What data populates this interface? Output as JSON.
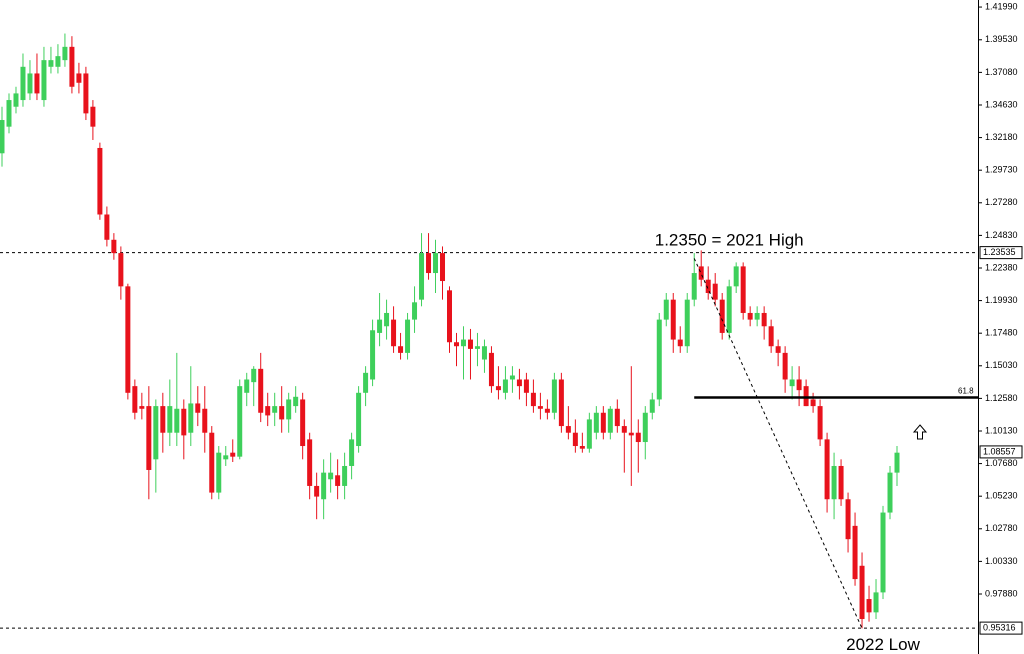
{
  "chart_data": {
    "type": "candlestick",
    "up_color": "#3ecf5b",
    "down_color": "#e8121c",
    "ylim": [
      0.9337,
      1.4252
    ],
    "yticks": [
      {
        "value": 1.4199,
        "label": "1.41990"
      },
      {
        "value": 1.3953,
        "label": "1.39530"
      },
      {
        "value": 1.3708,
        "label": "1.37080"
      },
      {
        "value": 1.3463,
        "label": "1.34630"
      },
      {
        "value": 1.3218,
        "label": "1.32180"
      },
      {
        "value": 1.2973,
        "label": "1.29730"
      },
      {
        "value": 1.2728,
        "label": "1.27280"
      },
      {
        "value": 1.2483,
        "label": "1.24830"
      },
      {
        "value": 1.2238,
        "label": "1.22380"
      },
      {
        "value": 1.1993,
        "label": "1.19930"
      },
      {
        "value": 1.1748,
        "label": "1.17480"
      },
      {
        "value": 1.1503,
        "label": "1.15030"
      },
      {
        "value": 1.1258,
        "label": "1.12580"
      },
      {
        "value": 1.1013,
        "label": "1.10130"
      },
      {
        "value": 1.0768,
        "label": "1.07680"
      },
      {
        "value": 1.0523,
        "label": "1.05230"
      },
      {
        "value": 1.0278,
        "label": "1.02780"
      },
      {
        "value": 1.0033,
        "label": "1.00330"
      },
      {
        "value": 0.9788,
        "label": "0.97880"
      }
    ],
    "price_labels": [
      {
        "value": 1.23535,
        "label": "1.23535",
        "dashed": true
      },
      {
        "value": 1.08557,
        "label": "1.08557",
        "dashed": false
      },
      {
        "value": 0.95316,
        "label": "0.95316",
        "dashed": true
      }
    ],
    "fib": {
      "ratio": 61.8,
      "price": 1.1265,
      "start": 99
    },
    "trendline": {
      "x": [
        99,
        123
      ],
      "y": [
        1.231,
        0.953
      ]
    },
    "annotations": [
      {
        "text": "1.2350 = 2021 High",
        "x": 104,
        "price": 1.244
      },
      {
        "text": "2022 Low",
        "x": 126,
        "price": 0.94
      }
    ],
    "ohlc": [
      [
        1.31,
        1.345,
        1.3,
        1.335
      ],
      [
        1.33,
        1.355,
        1.325,
        1.35
      ],
      [
        1.345,
        1.36,
        1.34,
        1.355
      ],
      [
        1.35,
        1.385,
        1.345,
        1.375
      ],
      [
        1.355,
        1.38,
        1.35,
        1.37
      ],
      [
        1.37,
        1.385,
        1.35,
        1.355
      ],
      [
        1.35,
        1.39,
        1.345,
        1.38
      ],
      [
        1.375,
        1.39,
        1.37,
        1.38
      ],
      [
        1.375,
        1.392,
        1.37,
        1.383
      ],
      [
        1.38,
        1.4,
        1.375,
        1.39
      ],
      [
        1.39,
        1.398,
        1.355,
        1.36
      ],
      [
        1.37,
        1.378,
        1.355,
        1.363
      ],
      [
        1.37,
        1.375,
        1.335,
        1.34
      ],
      [
        1.345,
        1.35,
        1.32,
        1.33
      ],
      [
        1.314,
        1.318,
        1.26,
        1.264
      ],
      [
        1.264,
        1.27,
        1.24,
        1.245
      ],
      [
        1.245,
        1.25,
        1.23,
        1.235
      ],
      [
        1.235,
        1.24,
        1.2,
        1.21
      ],
      [
        1.21,
        1.212,
        1.125,
        1.13
      ],
      [
        1.135,
        1.14,
        1.11,
        1.115
      ],
      [
        1.12,
        1.13,
        1.11,
        1.118
      ],
      [
        1.12,
        1.135,
        1.05,
        1.072
      ],
      [
        1.08,
        1.125,
        1.055,
        1.12
      ],
      [
        1.12,
        1.13,
        1.085,
        1.1
      ],
      [
        1.1,
        1.14,
        1.09,
        1.12
      ],
      [
        1.1,
        1.16,
        1.09,
        1.118
      ],
      [
        1.118,
        1.125,
        1.08,
        1.098
      ],
      [
        1.1,
        1.15,
        1.09,
        1.122
      ],
      [
        1.122,
        1.135,
        1.105,
        1.115
      ],
      [
        1.118,
        1.135,
        1.085,
        1.1
      ],
      [
        1.1,
        1.105,
        1.05,
        1.055
      ],
      [
        1.055,
        1.09,
        1.05,
        1.085
      ],
      [
        1.08,
        1.09,
        1.075,
        1.083
      ],
      [
        1.085,
        1.095,
        1.078,
        1.082
      ],
      [
        1.082,
        1.14,
        1.08,
        1.135
      ],
      [
        1.13,
        1.145,
        1.12,
        1.14
      ],
      [
        1.138,
        1.15,
        1.12,
        1.148
      ],
      [
        1.148,
        1.16,
        1.108,
        1.115
      ],
      [
        1.12,
        1.13,
        1.105,
        1.113
      ],
      [
        1.115,
        1.13,
        1.105,
        1.12
      ],
      [
        1.12,
        1.135,
        1.1,
        1.11
      ],
      [
        1.11,
        1.13,
        1.1,
        1.125
      ],
      [
        1.12,
        1.135,
        1.115,
        1.127
      ],
      [
        1.125,
        1.13,
        1.08,
        1.09
      ],
      [
        1.095,
        1.1,
        1.05,
        1.06
      ],
      [
        1.06,
        1.07,
        1.035,
        1.052
      ],
      [
        1.05,
        1.08,
        1.035,
        1.07
      ],
      [
        1.065,
        1.085,
        1.055,
        1.07
      ],
      [
        1.068,
        1.08,
        1.05,
        1.06
      ],
      [
        1.06,
        1.085,
        1.05,
        1.075
      ],
      [
        1.075,
        1.1,
        1.065,
        1.095
      ],
      [
        1.09,
        1.135,
        1.085,
        1.13
      ],
      [
        1.13,
        1.15,
        1.12,
        1.145
      ],
      [
        1.14,
        1.185,
        1.135,
        1.177
      ],
      [
        1.175,
        1.205,
        1.165,
        1.185
      ],
      [
        1.18,
        1.2,
        1.17,
        1.19
      ],
      [
        1.185,
        1.195,
        1.16,
        1.165
      ],
      [
        1.165,
        1.175,
        1.155,
        1.16
      ],
      [
        1.16,
        1.19,
        1.155,
        1.185
      ],
      [
        1.185,
        1.21,
        1.175,
        1.198
      ],
      [
        1.2,
        1.25,
        1.195,
        1.235
      ],
      [
        1.235,
        1.25,
        1.215,
        1.22
      ],
      [
        1.22,
        1.245,
        1.205,
        1.235
      ],
      [
        1.235,
        1.24,
        1.2,
        1.214
      ],
      [
        1.207,
        1.21,
        1.16,
        1.168
      ],
      [
        1.168,
        1.175,
        1.15,
        1.165
      ],
      [
        1.165,
        1.18,
        1.14,
        1.17
      ],
      [
        1.17,
        1.178,
        1.14,
        1.163
      ],
      [
        1.163,
        1.175,
        1.15,
        1.165
      ],
      [
        1.155,
        1.17,
        1.145,
        1.165
      ],
      [
        1.16,
        1.165,
        1.13,
        1.135
      ],
      [
        1.135,
        1.15,
        1.125,
        1.132
      ],
      [
        1.13,
        1.15,
        1.125,
        1.14
      ],
      [
        1.14,
        1.15,
        1.13,
        1.143
      ],
      [
        1.14,
        1.148,
        1.125,
        1.135
      ],
      [
        1.14,
        1.145,
        1.12,
        1.13
      ],
      [
        1.13,
        1.14,
        1.115,
        1.12
      ],
      [
        1.12,
        1.13,
        1.11,
        1.118
      ],
      [
        1.118,
        1.125,
        1.11,
        1.115
      ],
      [
        1.115,
        1.145,
        1.11,
        1.14
      ],
      [
        1.14,
        1.145,
        1.1,
        1.105
      ],
      [
        1.105,
        1.12,
        1.095,
        1.1
      ],
      [
        1.1,
        1.11,
        1.085,
        1.09
      ],
      [
        1.09,
        1.1,
        1.085,
        1.088
      ],
      [
        1.088,
        1.115,
        1.085,
        1.11
      ],
      [
        1.1,
        1.12,
        1.095,
        1.115
      ],
      [
        1.115,
        1.12,
        1.095,
        1.1
      ],
      [
        1.1,
        1.12,
        1.095,
        1.118
      ],
      [
        1.118,
        1.125,
        1.1,
        1.105
      ],
      [
        1.105,
        1.11,
        1.07,
        1.1
      ],
      [
        1.1,
        1.15,
        1.06,
        1.098
      ],
      [
        1.1,
        1.11,
        1.07,
        1.093
      ],
      [
        1.093,
        1.12,
        1.08,
        1.115
      ],
      [
        1.115,
        1.13,
        1.11,
        1.125
      ],
      [
        1.125,
        1.19,
        1.12,
        1.185
      ],
      [
        1.185,
        1.205,
        1.18,
        1.2
      ],
      [
        1.2,
        1.205,
        1.16,
        1.17
      ],
      [
        1.17,
        1.18,
        1.16,
        1.165
      ],
      [
        1.165,
        1.205,
        1.16,
        1.2
      ],
      [
        1.2,
        1.235,
        1.195,
        1.22
      ],
      [
        1.225,
        1.237,
        1.21,
        1.215
      ],
      [
        1.215,
        1.225,
        1.2,
        1.205
      ],
      [
        1.212,
        1.22,
        1.195,
        1.2
      ],
      [
        1.2,
        1.205,
        1.17,
        1.175
      ],
      [
        1.175,
        1.215,
        1.17,
        1.21
      ],
      [
        1.21,
        1.228,
        1.205,
        1.225
      ],
      [
        1.225,
        1.228,
        1.185,
        1.19
      ],
      [
        1.19,
        1.195,
        1.18,
        1.185
      ],
      [
        1.185,
        1.195,
        1.18,
        1.19
      ],
      [
        1.19,
        1.195,
        1.17,
        1.18
      ],
      [
        1.18,
        1.185,
        1.16,
        1.165
      ],
      [
        1.165,
        1.17,
        1.15,
        1.16
      ],
      [
        1.16,
        1.165,
        1.13,
        1.14
      ],
      [
        1.135,
        1.15,
        1.125,
        1.14
      ],
      [
        1.14,
        1.15,
        1.12,
        1.132
      ],
      [
        1.135,
        1.14,
        1.12,
        1.12
      ],
      [
        1.125,
        1.13,
        1.115,
        1.12
      ],
      [
        1.12,
        1.125,
        1.09,
        1.095
      ],
      [
        1.095,
        1.1,
        1.04,
        1.05
      ],
      [
        1.05,
        1.085,
        1.035,
        1.075
      ],
      [
        1.075,
        1.08,
        1.045,
        1.05
      ],
      [
        1.05,
        1.055,
        1.01,
        1.02
      ],
      [
        1.03,
        1.04,
        0.985,
        0.99
      ],
      [
        1.0,
        1.01,
        0.953,
        0.96
      ],
      [
        0.975,
        0.985,
        0.958,
        0.965
      ],
      [
        0.965,
        0.99,
        0.96,
        0.98
      ],
      [
        0.98,
        1.045,
        0.975,
        1.04
      ],
      [
        1.04,
        1.075,
        1.035,
        1.07
      ],
      [
        1.07,
        1.09,
        1.06,
        1.085
      ]
    ]
  }
}
